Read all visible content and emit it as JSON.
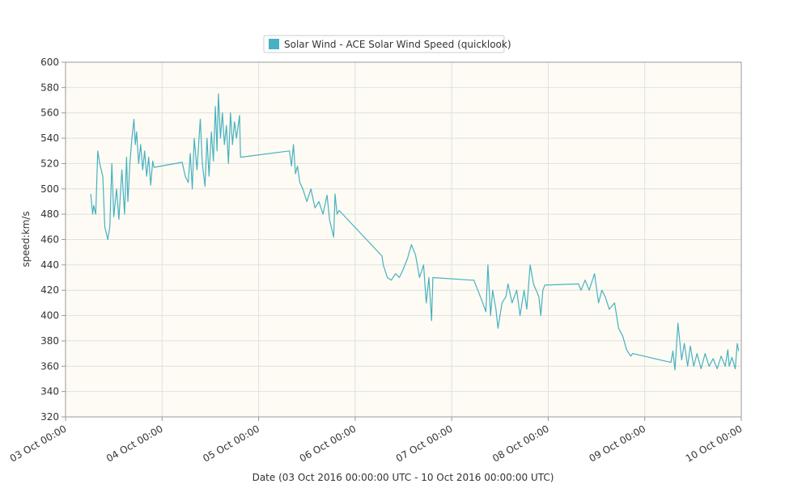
{
  "chart_data": {
    "type": "line",
    "title": "",
    "xlabel": "Date (03 Oct 2016 00:00:00 UTC - 10 Oct 2016 00:00:00 UTC)",
    "ylabel": "speed:km/s",
    "xlim": [
      "2016-10-03T00:00",
      "2016-10-10T00:00"
    ],
    "ylim": [
      320,
      600
    ],
    "x_tick_labels": [
      "03 Oct 00:00",
      "04 Oct 00:00",
      "05 Oct 00:00",
      "06 Oct 00:00",
      "07 Oct 00:00",
      "08 Oct 00:00",
      "09 Oct 00:00",
      "10 Oct 00:00"
    ],
    "y_ticks": [
      320,
      340,
      360,
      380,
      400,
      420,
      440,
      460,
      480,
      500,
      520,
      540,
      560,
      580,
      600
    ],
    "grid": true,
    "legend_position": "top-center",
    "colors": {
      "series": "#47b1c1",
      "plot_background": "#fdfbf3",
      "grid": "#e0e0e0"
    },
    "series": [
      {
        "name": "Solar Wind - ACE Solar Wind Speed (quicklook)",
        "points": [
          [
            "2016-10-03T06:15",
            496
          ],
          [
            "2016-10-03T06:45",
            480
          ],
          [
            "2016-10-03T07:00",
            487
          ],
          [
            "2016-10-03T07:30",
            480
          ],
          [
            "2016-10-03T08:00",
            530
          ],
          [
            "2016-10-03T08:30",
            520
          ],
          [
            "2016-10-03T09:15",
            510
          ],
          [
            "2016-10-03T09:45",
            470
          ],
          [
            "2016-10-03T10:30",
            460
          ],
          [
            "2016-10-03T11:00",
            470
          ],
          [
            "2016-10-03T11:30",
            520
          ],
          [
            "2016-10-03T12:00",
            478
          ],
          [
            "2016-10-03T12:40",
            500
          ],
          [
            "2016-10-03T13:15",
            476
          ],
          [
            "2016-10-03T14:00",
            515
          ],
          [
            "2016-10-03T14:40",
            480
          ],
          [
            "2016-10-03T15:10",
            525
          ],
          [
            "2016-10-03T15:30",
            490
          ],
          [
            "2016-10-03T16:00",
            520
          ],
          [
            "2016-10-03T16:30",
            540
          ],
          [
            "2016-10-03T17:00",
            555
          ],
          [
            "2016-10-03T17:20",
            535
          ],
          [
            "2016-10-03T17:40",
            545
          ],
          [
            "2016-10-03T18:10",
            520
          ],
          [
            "2016-10-03T18:40",
            535
          ],
          [
            "2016-10-03T19:10",
            515
          ],
          [
            "2016-10-03T19:40",
            530
          ],
          [
            "2016-10-03T20:10",
            510
          ],
          [
            "2016-10-03T20:40",
            525
          ],
          [
            "2016-10-03T21:10",
            503
          ],
          [
            "2016-10-03T21:40",
            522
          ],
          [
            "2016-10-03T22:00",
            517
          ],
          [
            "2016-10-04T05:00",
            521
          ],
          [
            "2016-10-04T05:45",
            510
          ],
          [
            "2016-10-04T06:30",
            505
          ],
          [
            "2016-10-04T07:00",
            528
          ],
          [
            "2016-10-04T07:30",
            500
          ],
          [
            "2016-10-04T08:00",
            540
          ],
          [
            "2016-10-04T08:40",
            515
          ],
          [
            "2016-10-04T09:30",
            555
          ],
          [
            "2016-10-04T10:00",
            520
          ],
          [
            "2016-10-04T10:40",
            502
          ],
          [
            "2016-10-04T11:10",
            540
          ],
          [
            "2016-10-04T11:40",
            510
          ],
          [
            "2016-10-04T12:15",
            545
          ],
          [
            "2016-10-04T12:45",
            522
          ],
          [
            "2016-10-04T13:15",
            565
          ],
          [
            "2016-10-04T13:40",
            530
          ],
          [
            "2016-10-04T14:00",
            575
          ],
          [
            "2016-10-04T14:30",
            540
          ],
          [
            "2016-10-04T15:00",
            560
          ],
          [
            "2016-10-04T15:30",
            535
          ],
          [
            "2016-10-04T16:00",
            550
          ],
          [
            "2016-10-04T16:30",
            520
          ],
          [
            "2016-10-04T17:00",
            560
          ],
          [
            "2016-10-04T17:30",
            535
          ],
          [
            "2016-10-04T18:00",
            553
          ],
          [
            "2016-10-04T18:30",
            540
          ],
          [
            "2016-10-04T19:15",
            558
          ],
          [
            "2016-10-04T19:30",
            525
          ],
          [
            "2016-10-05T07:40",
            530
          ],
          [
            "2016-10-05T08:10",
            518
          ],
          [
            "2016-10-05T08:40",
            535
          ],
          [
            "2016-10-05T09:10",
            512
          ],
          [
            "2016-10-05T09:40",
            518
          ],
          [
            "2016-10-05T10:15",
            505
          ],
          [
            "2016-10-05T11:00",
            500
          ],
          [
            "2016-10-05T12:00",
            490
          ],
          [
            "2016-10-05T13:00",
            500
          ],
          [
            "2016-10-05T14:00",
            485
          ],
          [
            "2016-10-05T15:00",
            490
          ],
          [
            "2016-10-05T16:00",
            480
          ],
          [
            "2016-10-05T17:00",
            495
          ],
          [
            "2016-10-05T17:40",
            475
          ],
          [
            "2016-10-05T18:40",
            462
          ],
          [
            "2016-10-05T19:00",
            496
          ],
          [
            "2016-10-05T19:30",
            480
          ],
          [
            "2016-10-05T20:00",
            483
          ],
          [
            "2016-10-06T06:40",
            447
          ],
          [
            "2016-10-06T07:00",
            440
          ],
          [
            "2016-10-06T08:00",
            430
          ],
          [
            "2016-10-06T09:00",
            428
          ],
          [
            "2016-10-06T10:00",
            433
          ],
          [
            "2016-10-06T11:00",
            430
          ],
          [
            "2016-10-06T12:00",
            437
          ],
          [
            "2016-10-06T13:00",
            445
          ],
          [
            "2016-10-06T14:00",
            456
          ],
          [
            "2016-10-06T15:00",
            448
          ],
          [
            "2016-10-06T16:00",
            430
          ],
          [
            "2016-10-06T17:00",
            440
          ],
          [
            "2016-10-06T17:40",
            410
          ],
          [
            "2016-10-06T18:20",
            430
          ],
          [
            "2016-10-06T19:00",
            396
          ],
          [
            "2016-10-06T19:20",
            430
          ],
          [
            "2016-10-07T04:40",
            428
          ],
          [
            "2016-10-07T05:30",
            428
          ],
          [
            "2016-10-07T06:30",
            420
          ],
          [
            "2016-10-07T07:30",
            412
          ],
          [
            "2016-10-07T08:30",
            403
          ],
          [
            "2016-10-07T09:00",
            440
          ],
          [
            "2016-10-07T09:40",
            400
          ],
          [
            "2016-10-07T10:10",
            420
          ],
          [
            "2016-10-07T11:00",
            405
          ],
          [
            "2016-10-07T11:30",
            390
          ],
          [
            "2016-10-07T12:30",
            410
          ],
          [
            "2016-10-07T13:30",
            415
          ],
          [
            "2016-10-07T14:00",
            425
          ],
          [
            "2016-10-07T15:00",
            410
          ],
          [
            "2016-10-07T16:10",
            420
          ],
          [
            "2016-10-07T17:00",
            400
          ],
          [
            "2016-10-07T18:00",
            420
          ],
          [
            "2016-10-07T18:40",
            405
          ],
          [
            "2016-10-07T19:30",
            440
          ],
          [
            "2016-10-07T20:20",
            425
          ],
          [
            "2016-10-07T21:40",
            415
          ],
          [
            "2016-10-07T22:10",
            400
          ],
          [
            "2016-10-07T22:40",
            420
          ],
          [
            "2016-10-07T23:10",
            424
          ],
          [
            "2016-10-08T07:30",
            425
          ],
          [
            "2016-10-08T08:10",
            420
          ],
          [
            "2016-10-08T09:10",
            428
          ],
          [
            "2016-10-08T10:10",
            420
          ],
          [
            "2016-10-08T11:30",
            433
          ],
          [
            "2016-10-08T12:30",
            410
          ],
          [
            "2016-10-08T13:20",
            420
          ],
          [
            "2016-10-08T14:10",
            415
          ],
          [
            "2016-10-08T15:10",
            405
          ],
          [
            "2016-10-08T16:30",
            410
          ],
          [
            "2016-10-08T17:30",
            390
          ],
          [
            "2016-10-08T18:30",
            384
          ],
          [
            "2016-10-08T19:30",
            373
          ],
          [
            "2016-10-08T20:30",
            368
          ],
          [
            "2016-10-08T21:00",
            370
          ],
          [
            "2016-10-09T06:30",
            363
          ],
          [
            "2016-10-09T07:00",
            372
          ],
          [
            "2016-10-09T07:30",
            357
          ],
          [
            "2016-10-09T08:15",
            394
          ],
          [
            "2016-10-09T09:10",
            365
          ],
          [
            "2016-10-09T09:50",
            378
          ],
          [
            "2016-10-09T10:40",
            360
          ],
          [
            "2016-10-09T11:20",
            376
          ],
          [
            "2016-10-09T12:10",
            360
          ],
          [
            "2016-10-09T13:00",
            370
          ],
          [
            "2016-10-09T14:00",
            358
          ],
          [
            "2016-10-09T15:00",
            370
          ],
          [
            "2016-10-09T16:00",
            360
          ],
          [
            "2016-10-09T17:00",
            366
          ],
          [
            "2016-10-09T18:00",
            358
          ],
          [
            "2016-10-09T19:00",
            368
          ],
          [
            "2016-10-09T20:00",
            360
          ],
          [
            "2016-10-09T20:40",
            373
          ],
          [
            "2016-10-09T21:00",
            360
          ],
          [
            "2016-10-09T21:40",
            367
          ],
          [
            "2016-10-09T22:30",
            358
          ],
          [
            "2016-10-09T23:00",
            378
          ],
          [
            "2016-10-09T23:20",
            372
          ]
        ]
      }
    ]
  }
}
